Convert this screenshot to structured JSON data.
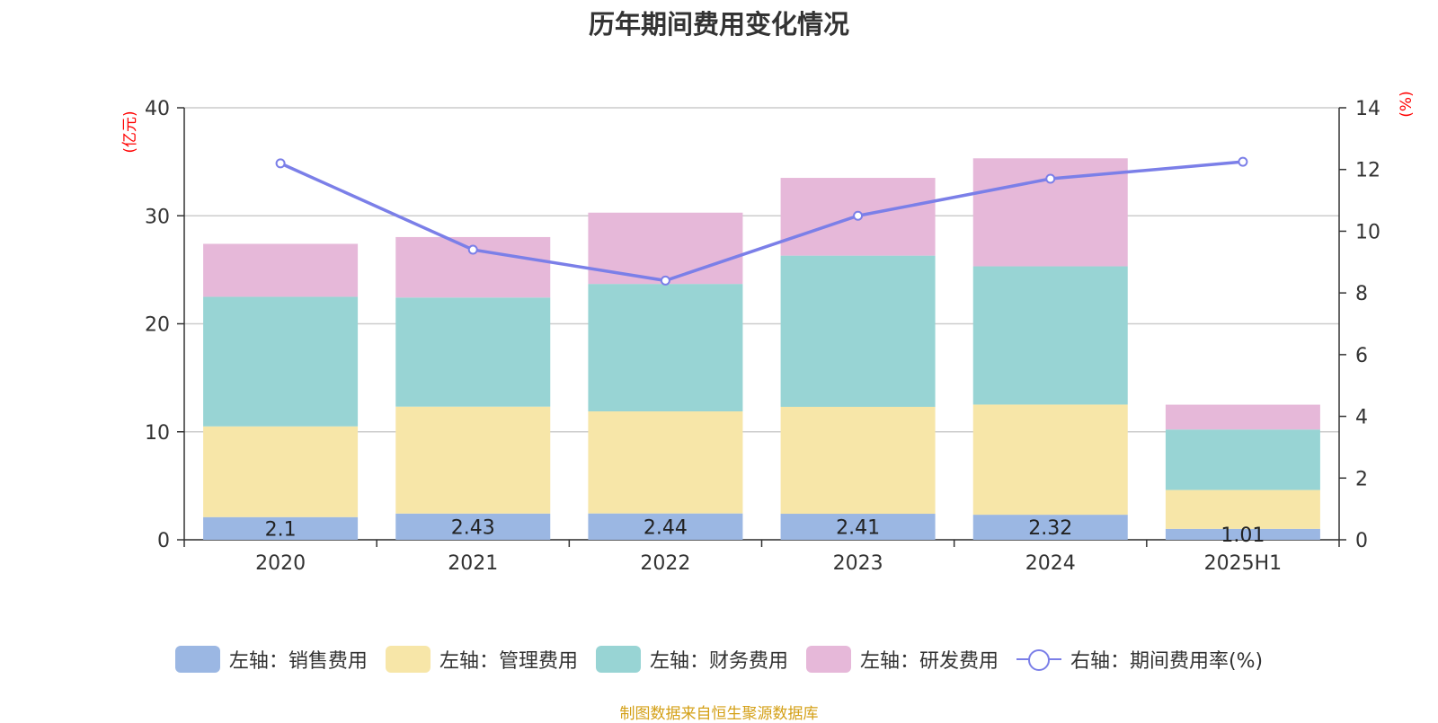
{
  "chart_data": {
    "type": "bar",
    "title": "历年期间费用变化情况",
    "categories": [
      "2020",
      "2021",
      "2022",
      "2023",
      "2024",
      "2025H1"
    ],
    "y_left": {
      "unit": "(亿元)",
      "ylim": [
        0,
        40
      ],
      "ticks": [
        "0",
        "10",
        "20",
        "30",
        "40"
      ]
    },
    "y_right": {
      "unit": "(%)",
      "ylim": [
        0,
        14
      ],
      "ticks": [
        "0",
        "2",
        "4",
        "6",
        "8",
        "10",
        "12",
        "14"
      ]
    },
    "grid": true,
    "legend_position": "bottom",
    "series": [
      {
        "name": "左轴：销售费用",
        "type": "bar",
        "color": "#9bb7e3",
        "values": [
          2.1,
          2.43,
          2.44,
          2.41,
          2.32,
          1.01
        ],
        "labels": [
          "2.1",
          "2.43",
          "2.44",
          "2.41",
          "2.32",
          "1.01"
        ]
      },
      {
        "name": "左轴：管理费用",
        "type": "bar",
        "color": "#f7e6a8",
        "values": [
          8.4,
          9.9,
          9.45,
          9.9,
          10.2,
          3.6
        ]
      },
      {
        "name": "左轴：财务费用",
        "type": "bar",
        "color": "#98d4d4",
        "values": [
          12.0,
          10.1,
          11.8,
          14.0,
          12.8,
          5.6
        ]
      },
      {
        "name": "左轴：研发费用",
        "type": "bar",
        "color": "#e6b8d9",
        "values": [
          4.9,
          5.6,
          6.6,
          7.2,
          10.0,
          2.3
        ]
      },
      {
        "name": "右轴：期间费用率(%)",
        "type": "line",
        "axis": "right",
        "color": "#7b7fe8",
        "values": [
          12.2,
          9.4,
          8.4,
          10.5,
          11.7,
          12.25
        ]
      }
    ]
  },
  "source_note": "制图数据来自恒生聚源数据库"
}
